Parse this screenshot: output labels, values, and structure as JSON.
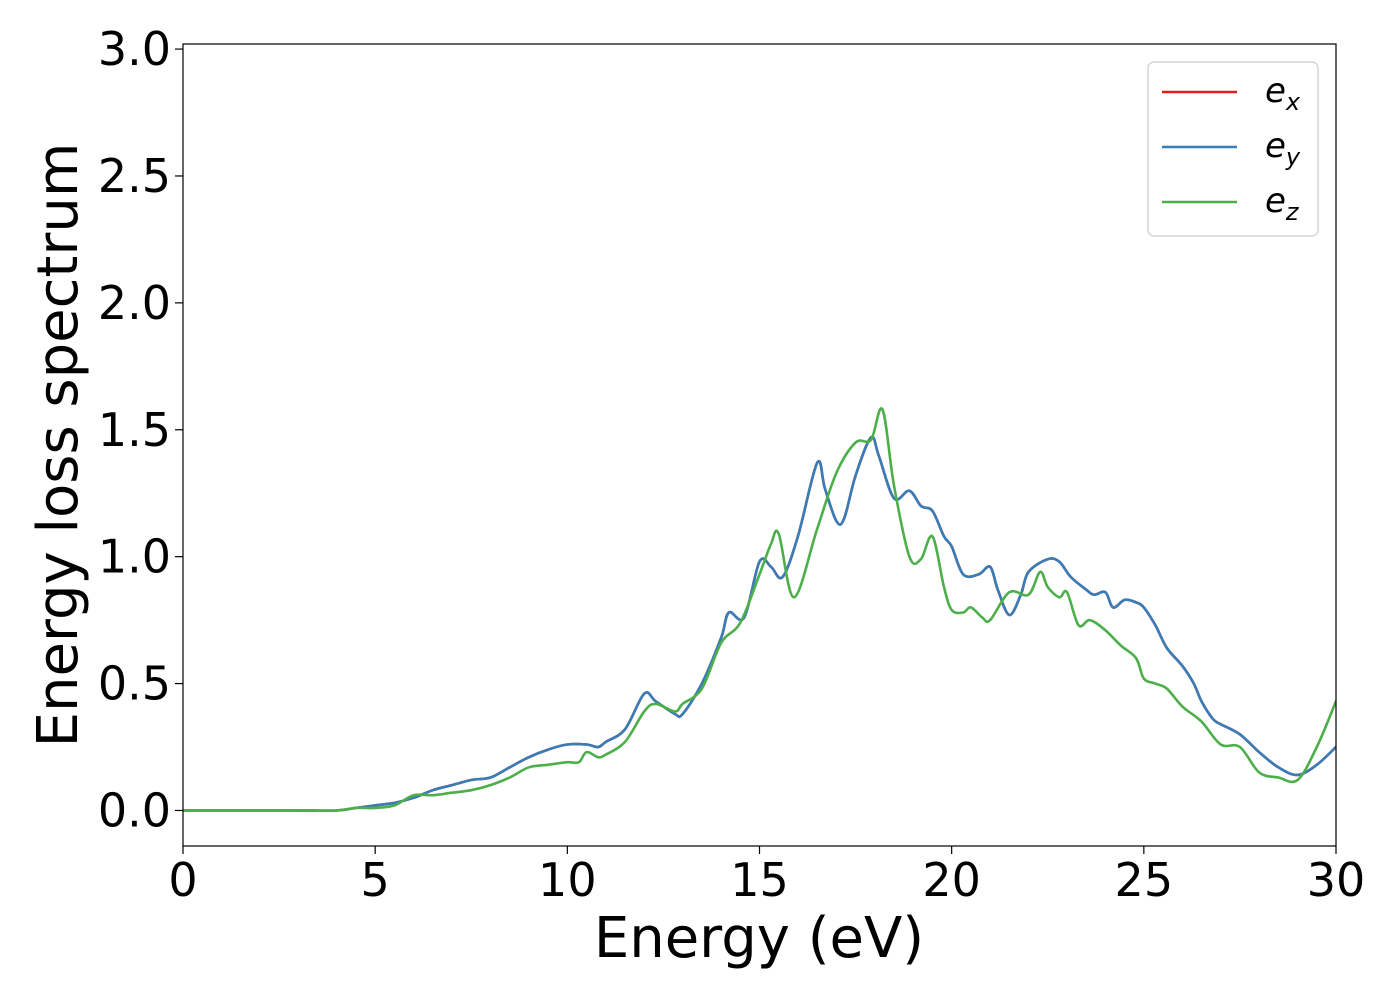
{
  "chart_data": {
    "type": "line",
    "title": "",
    "xlabel": "Energy (eV)",
    "ylabel": "Energy loss spectrum",
    "xlim": [
      0,
      30
    ],
    "ylim": [
      -0.14,
      3.02
    ],
    "xticks": [
      0,
      5,
      10,
      15,
      20,
      25,
      30
    ],
    "yticks": [
      0.0,
      0.5,
      1.0,
      1.5,
      2.0,
      2.5,
      3.0
    ],
    "xtick_labels": [
      "0",
      "5",
      "10",
      "15",
      "20",
      "25",
      "30"
    ],
    "ytick_labels": [
      "0.0",
      "0.5",
      "1.0",
      "1.5",
      "2.0",
      "2.5",
      "3.0"
    ],
    "grid": false,
    "legend": "top-right",
    "series": [
      {
        "name": "e",
        "sub": "x",
        "color": "#e41a1c",
        "x": [
          0,
          1,
          2,
          3,
          4,
          4.5,
          5,
          5.5,
          6,
          6.5,
          7,
          7.5,
          8,
          8.5,
          9,
          9.5,
          10,
          10.5,
          10.8,
          11,
          11.5,
          12,
          12.3,
          12.8,
          13,
          13.5,
          14,
          14.2,
          14.6,
          15,
          15.3,
          15.6,
          16,
          16.5,
          16.7,
          17,
          17.2,
          17.5,
          17.9,
          18.1,
          18.5,
          18.9,
          19.2,
          19.5,
          19.8,
          20,
          20.3,
          20.7,
          21,
          21.2,
          21.5,
          21.8,
          22,
          22.5,
          22.8,
          23.1,
          23.5,
          23.7,
          24,
          24.2,
          24.5,
          24.8,
          25,
          25.3,
          25.6,
          26,
          26.3,
          26.5,
          26.8,
          27,
          27.5,
          28,
          28.5,
          29,
          29.5,
          30
        ],
        "y": [
          0,
          0,
          0,
          0,
          0,
          0.01,
          0.02,
          0.03,
          0.05,
          0.08,
          0.1,
          0.12,
          0.13,
          0.17,
          0.21,
          0.24,
          0.26,
          0.26,
          0.25,
          0.27,
          0.32,
          0.46,
          0.43,
          0.38,
          0.38,
          0.5,
          0.68,
          0.78,
          0.76,
          0.98,
          0.96,
          0.92,
          1.08,
          1.37,
          1.27,
          1.14,
          1.15,
          1.32,
          1.47,
          1.4,
          1.23,
          1.26,
          1.2,
          1.18,
          1.08,
          1.04,
          0.93,
          0.93,
          0.96,
          0.87,
          0.77,
          0.85,
          0.94,
          0.99,
          0.98,
          0.92,
          0.87,
          0.85,
          0.86,
          0.8,
          0.83,
          0.82,
          0.8,
          0.73,
          0.64,
          0.57,
          0.5,
          0.43,
          0.36,
          0.34,
          0.3,
          0.23,
          0.17,
          0.14,
          0.18,
          0.25
        ]
      },
      {
        "name": "e",
        "sub": "y",
        "color": "#377eb8",
        "x": [
          0,
          1,
          2,
          3,
          4,
          4.5,
          5,
          5.5,
          6,
          6.5,
          7,
          7.5,
          8,
          8.5,
          9,
          9.5,
          10,
          10.5,
          10.8,
          11,
          11.5,
          12,
          12.3,
          12.8,
          13,
          13.5,
          14,
          14.2,
          14.6,
          15,
          15.3,
          15.6,
          16,
          16.5,
          16.7,
          17,
          17.2,
          17.5,
          17.9,
          18.1,
          18.5,
          18.9,
          19.2,
          19.5,
          19.8,
          20,
          20.3,
          20.7,
          21,
          21.2,
          21.5,
          21.8,
          22,
          22.5,
          22.8,
          23.1,
          23.5,
          23.7,
          24,
          24.2,
          24.5,
          24.8,
          25,
          25.3,
          25.6,
          26,
          26.3,
          26.5,
          26.8,
          27,
          27.5,
          28,
          28.5,
          29,
          29.5,
          30
        ],
        "y": [
          0,
          0,
          0,
          0,
          0,
          0.01,
          0.02,
          0.03,
          0.05,
          0.08,
          0.1,
          0.12,
          0.13,
          0.17,
          0.21,
          0.24,
          0.26,
          0.26,
          0.25,
          0.27,
          0.32,
          0.46,
          0.43,
          0.38,
          0.38,
          0.5,
          0.68,
          0.78,
          0.76,
          0.98,
          0.96,
          0.92,
          1.08,
          1.37,
          1.27,
          1.14,
          1.15,
          1.32,
          1.47,
          1.4,
          1.23,
          1.26,
          1.2,
          1.18,
          1.08,
          1.04,
          0.93,
          0.93,
          0.96,
          0.87,
          0.77,
          0.85,
          0.94,
          0.99,
          0.98,
          0.92,
          0.87,
          0.85,
          0.86,
          0.8,
          0.83,
          0.82,
          0.8,
          0.73,
          0.64,
          0.57,
          0.5,
          0.43,
          0.36,
          0.34,
          0.3,
          0.23,
          0.17,
          0.14,
          0.18,
          0.25
        ]
      },
      {
        "name": "e",
        "sub": "z",
        "color": "#4daf4a",
        "x": [
          0,
          1,
          2,
          3,
          4,
          4.5,
          5,
          5.5,
          6,
          6.5,
          7,
          7.5,
          8,
          8.5,
          9,
          9.5,
          10,
          10.3,
          10.5,
          10.8,
          11,
          11.5,
          12,
          12.3,
          12.8,
          13,
          13.5,
          14,
          14.5,
          15,
          15.3,
          15.5,
          15.9,
          16.5,
          17,
          17.5,
          17.9,
          18.2,
          18.5,
          18.9,
          19.2,
          19.5,
          19.8,
          20,
          20.3,
          20.5,
          20.8,
          21,
          21.5,
          22,
          22.3,
          22.5,
          22.8,
          23,
          23.3,
          23.6,
          24,
          24.4,
          24.8,
          25,
          25.3,
          25.6,
          26,
          26.5,
          27,
          27.5,
          28,
          28.5,
          29,
          29.5,
          30
        ],
        "y": [
          0,
          0,
          0,
          0,
          0,
          0.01,
          0.01,
          0.02,
          0.06,
          0.06,
          0.07,
          0.08,
          0.1,
          0.13,
          0.17,
          0.18,
          0.19,
          0.19,
          0.23,
          0.21,
          0.22,
          0.27,
          0.39,
          0.42,
          0.39,
          0.42,
          0.48,
          0.66,
          0.74,
          0.93,
          1.05,
          1.09,
          0.84,
          1.11,
          1.33,
          1.45,
          1.46,
          1.58,
          1.28,
          1.0,
          0.99,
          1.08,
          0.88,
          0.79,
          0.78,
          0.8,
          0.76,
          0.75,
          0.86,
          0.85,
          0.94,
          0.88,
          0.84,
          0.86,
          0.73,
          0.75,
          0.71,
          0.65,
          0.6,
          0.52,
          0.5,
          0.48,
          0.41,
          0.35,
          0.26,
          0.25,
          0.15,
          0.13,
          0.12,
          0.25,
          0.43
        ]
      }
    ]
  }
}
